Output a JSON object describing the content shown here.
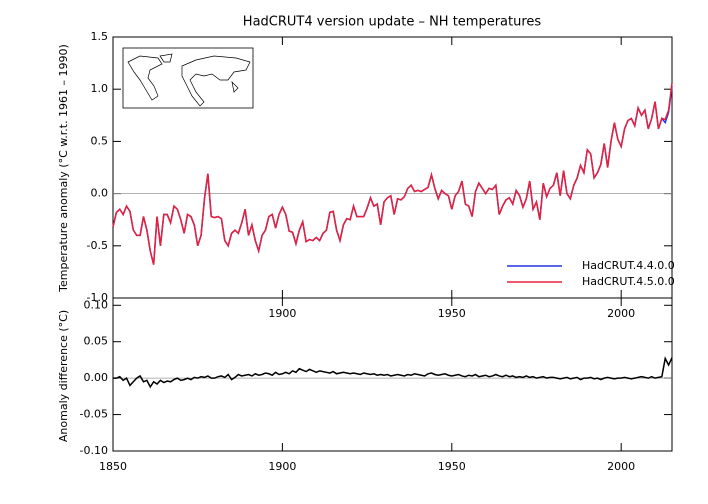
{
  "chart_data": [
    {
      "type": "line",
      "title": "HadCRUT4 version update – NH temperatures",
      "y_label": "Temperature anomaly (°C w.r.t. 1961 – 1990)",
      "x": [
        1850,
        1851,
        1852,
        1853,
        1854,
        1855,
        1856,
        1857,
        1858,
        1859,
        1860,
        1861,
        1862,
        1863,
        1864,
        1865,
        1866,
        1867,
        1868,
        1869,
        1870,
        1871,
        1872,
        1873,
        1874,
        1875,
        1876,
        1877,
        1878,
        1879,
        1880,
        1881,
        1882,
        1883,
        1884,
        1885,
        1886,
        1887,
        1888,
        1889,
        1890,
        1891,
        1892,
        1893,
        1894,
        1895,
        1896,
        1897,
        1898,
        1899,
        1900,
        1901,
        1902,
        1903,
        1904,
        1905,
        1906,
        1907,
        1908,
        1909,
        1910,
        1911,
        1912,
        1913,
        1914,
        1915,
        1916,
        1917,
        1918,
        1919,
        1920,
        1921,
        1922,
        1923,
        1924,
        1925,
        1926,
        1927,
        1928,
        1929,
        1930,
        1931,
        1932,
        1933,
        1934,
        1935,
        1936,
        1937,
        1938,
        1939,
        1940,
        1941,
        1942,
        1943,
        1944,
        1945,
        1946,
        1947,
        1948,
        1949,
        1950,
        1951,
        1952,
        1953,
        1954,
        1955,
        1956,
        1957,
        1958,
        1959,
        1960,
        1961,
        1962,
        1963,
        1964,
        1965,
        1966,
        1967,
        1968,
        1969,
        1970,
        1971,
        1972,
        1973,
        1974,
        1975,
        1976,
        1977,
        1978,
        1979,
        1980,
        1981,
        1982,
        1983,
        1984,
        1985,
        1986,
        1987,
        1988,
        1989,
        1990,
        1991,
        1992,
        1993,
        1994,
        1995,
        1996,
        1997,
        1998,
        1999,
        2000,
        2001,
        2002,
        2003,
        2004,
        2005,
        2006,
        2007,
        2008,
        2009,
        2010,
        2011,
        2012,
        2013,
        2014,
        2015
      ],
      "series": [
        {
          "name": "HadCRUT.4.4.0.0",
          "color": "#2233dd",
          "values": [
            -0.32,
            -0.18,
            -0.15,
            -0.2,
            -0.12,
            -0.17,
            -0.35,
            -0.4,
            -0.4,
            -0.22,
            -0.35,
            -0.55,
            -0.68,
            -0.22,
            -0.5,
            -0.2,
            -0.2,
            -0.28,
            -0.12,
            -0.15,
            -0.25,
            -0.38,
            -0.2,
            -0.22,
            -0.3,
            -0.5,
            -0.4,
            -0.05,
            0.19,
            -0.22,
            -0.23,
            -0.22,
            -0.24,
            -0.45,
            -0.5,
            -0.38,
            -0.35,
            -0.38,
            -0.28,
            -0.15,
            -0.4,
            -0.3,
            -0.45,
            -0.55,
            -0.4,
            -0.35,
            -0.22,
            -0.2,
            -0.33,
            -0.2,
            -0.13,
            -0.2,
            -0.36,
            -0.37,
            -0.48,
            -0.35,
            -0.27,
            -0.46,
            -0.44,
            -0.45,
            -0.42,
            -0.45,
            -0.38,
            -0.35,
            -0.18,
            -0.17,
            -0.35,
            -0.45,
            -0.3,
            -0.24,
            -0.25,
            -0.12,
            -0.22,
            -0.22,
            -0.22,
            -0.14,
            -0.04,
            -0.12,
            -0.1,
            -0.3,
            -0.08,
            -0.04,
            -0.02,
            -0.2,
            -0.05,
            -0.06,
            -0.03,
            0.05,
            0.08,
            0.02,
            0.03,
            0.02,
            0.04,
            0.06,
            0.18,
            0.05,
            -0.05,
            0.03,
            0.0,
            -0.02,
            -0.15,
            -0.02,
            0.02,
            0.12,
            -0.1,
            -0.12,
            -0.22,
            0.02,
            0.1,
            0.05,
            0.0,
            0.05,
            0.04,
            0.08,
            -0.2,
            -0.12,
            -0.06,
            -0.04,
            -0.1,
            0.03,
            -0.02,
            -0.13,
            -0.05,
            0.12,
            -0.15,
            -0.08,
            -0.25,
            0.1,
            -0.03,
            0.05,
            0.08,
            0.2,
            -0.02,
            0.22,
            0.0,
            -0.05,
            0.08,
            0.15,
            0.27,
            0.2,
            0.42,
            0.38,
            0.15,
            0.2,
            0.28,
            0.48,
            0.25,
            0.5,
            0.68,
            0.52,
            0.45,
            0.62,
            0.7,
            0.72,
            0.65,
            0.82,
            0.75,
            0.8,
            0.62,
            0.72,
            0.88,
            0.62,
            0.72,
            0.68,
            0.78,
            1.03
          ]
        },
        {
          "name": "HadCRUT.4.5.0.0",
          "color": "#e8203a",
          "values": [
            -0.32,
            -0.18,
            -0.15,
            -0.2,
            -0.12,
            -0.17,
            -0.35,
            -0.4,
            -0.4,
            -0.22,
            -0.35,
            -0.55,
            -0.68,
            -0.22,
            -0.5,
            -0.2,
            -0.2,
            -0.28,
            -0.12,
            -0.15,
            -0.25,
            -0.38,
            -0.2,
            -0.22,
            -0.3,
            -0.5,
            -0.4,
            -0.05,
            0.19,
            -0.22,
            -0.23,
            -0.22,
            -0.24,
            -0.45,
            -0.5,
            -0.38,
            -0.35,
            -0.38,
            -0.28,
            -0.15,
            -0.4,
            -0.3,
            -0.45,
            -0.55,
            -0.4,
            -0.35,
            -0.22,
            -0.2,
            -0.33,
            -0.2,
            -0.13,
            -0.2,
            -0.36,
            -0.37,
            -0.48,
            -0.35,
            -0.27,
            -0.46,
            -0.44,
            -0.45,
            -0.42,
            -0.45,
            -0.38,
            -0.35,
            -0.18,
            -0.17,
            -0.35,
            -0.45,
            -0.3,
            -0.24,
            -0.25,
            -0.12,
            -0.22,
            -0.22,
            -0.22,
            -0.14,
            -0.04,
            -0.12,
            -0.1,
            -0.3,
            -0.08,
            -0.04,
            -0.02,
            -0.2,
            -0.05,
            -0.06,
            -0.03,
            0.05,
            0.08,
            0.02,
            0.03,
            0.02,
            0.04,
            0.06,
            0.18,
            0.05,
            -0.05,
            0.03,
            0.0,
            -0.02,
            -0.15,
            -0.02,
            0.02,
            0.12,
            -0.1,
            -0.12,
            -0.22,
            0.02,
            0.1,
            0.05,
            0.0,
            0.05,
            0.04,
            0.08,
            -0.2,
            -0.12,
            -0.06,
            -0.04,
            -0.1,
            0.03,
            -0.02,
            -0.13,
            -0.05,
            0.12,
            -0.15,
            -0.08,
            -0.25,
            0.1,
            -0.03,
            0.05,
            0.08,
            0.2,
            -0.02,
            0.22,
            0.0,
            -0.05,
            0.08,
            0.15,
            0.27,
            0.2,
            0.42,
            0.38,
            0.15,
            0.2,
            0.28,
            0.48,
            0.25,
            0.5,
            0.68,
            0.52,
            0.45,
            0.62,
            0.7,
            0.72,
            0.65,
            0.82,
            0.75,
            0.8,
            0.62,
            0.72,
            0.88,
            0.62,
            0.72,
            0.71,
            0.8,
            1.06
          ]
        }
      ],
      "xlim": [
        1850,
        2015
      ],
      "xticks": [
        1900,
        1950,
        2000
      ],
      "ylim": [
        -1.0,
        1.5
      ],
      "yticks": [
        {
          "value": -1.0,
          "label": "-1.0"
        },
        {
          "value": -0.5,
          "label": "-0.5"
        },
        {
          "value": 0,
          "label": "0.0"
        },
        {
          "value": 0.5,
          "label": "0.5"
        },
        {
          "value": 1.0,
          "label": "1.0"
        },
        {
          "value": 1.5,
          "label": "1.5"
        }
      ],
      "legend": "lower right"
    },
    {
      "type": "line",
      "y_label": "Anomaly difference (°C)",
      "x": [
        1850,
        1851,
        1852,
        1853,
        1854,
        1855,
        1856,
        1857,
        1858,
        1859,
        1860,
        1861,
        1862,
        1863,
        1864,
        1865,
        1866,
        1867,
        1868,
        1869,
        1870,
        1871,
        1872,
        1873,
        1874,
        1875,
        1876,
        1877,
        1878,
        1879,
        1880,
        1881,
        1882,
        1883,
        1884,
        1885,
        1886,
        1887,
        1888,
        1889,
        1890,
        1891,
        1892,
        1893,
        1894,
        1895,
        1896,
        1897,
        1898,
        1899,
        1900,
        1901,
        1902,
        1903,
        1904,
        1905,
        1906,
        1907,
        1908,
        1909,
        1910,
        1911,
        1912,
        1913,
        1914,
        1915,
        1916,
        1917,
        1918,
        1919,
        1920,
        1921,
        1922,
        1923,
        1924,
        1925,
        1926,
        1927,
        1928,
        1929,
        1930,
        1931,
        1932,
        1933,
        1934,
        1935,
        1936,
        1937,
        1938,
        1939,
        1940,
        1941,
        1942,
        1943,
        1944,
        1945,
        1946,
        1947,
        1948,
        1949,
        1950,
        1951,
        1952,
        1953,
        1954,
        1955,
        1956,
        1957,
        1958,
        1959,
        1960,
        1961,
        1962,
        1963,
        1964,
        1965,
        1966,
        1967,
        1968,
        1969,
        1970,
        1971,
        1972,
        1973,
        1974,
        1975,
        1976,
        1977,
        1978,
        1979,
        1980,
        1981,
        1982,
        1983,
        1984,
        1985,
        1986,
        1987,
        1988,
        1989,
        1990,
        1991,
        1992,
        1993,
        1994,
        1995,
        1996,
        1997,
        1998,
        1999,
        2000,
        2001,
        2002,
        2003,
        2004,
        2005,
        2006,
        2007,
        2008,
        2009,
        2010,
        2011,
        2012,
        2013,
        2014,
        2015
      ],
      "series": [
        {
          "color": "#000000",
          "values": [
            0,
            0,
            0.002,
            -0.003,
            0,
            -0.01,
            -0.005,
            0,
            0.003,
            -0.005,
            -0.003,
            -0.012,
            -0.005,
            -0.008,
            -0.003,
            -0.006,
            -0.004,
            -0.005,
            -0.002,
            0,
            -0.003,
            -0.002,
            0,
            -0.002,
            0.001,
            0,
            0.002,
            0.001,
            0.003,
            0,
            0,
            0.002,
            0.003,
            0.001,
            0.005,
            -0.002,
            0.001,
            0.005,
            0.003,
            0.004,
            0.005,
            0.003,
            0.006,
            0.004,
            0.005,
            0.007,
            0.006,
            0.004,
            0.008,
            0.005,
            0.006,
            0.008,
            0.006,
            0.01,
            0.008,
            0.013,
            0.011,
            0.009,
            0.012,
            0.01,
            0.008,
            0.01,
            0.009,
            0.008,
            0.007,
            0.009,
            0.006,
            0.007,
            0.008,
            0.007,
            0.006,
            0.007,
            0.006,
            0.005,
            0.007,
            0.006,
            0.005,
            0.006,
            0.004,
            0.005,
            0.004,
            0.005,
            0.003,
            0.004,
            0.005,
            0.004,
            0.003,
            0.005,
            0.004,
            0.006,
            0.005,
            0.004,
            0.003,
            0.006,
            0.007,
            0.005,
            0.004,
            0.005,
            0.006,
            0.004,
            0.003,
            0.004,
            0.005,
            0.003,
            0.002,
            0.004,
            0.003,
            0.005,
            0.002,
            0.003,
            0.004,
            0.002,
            0.003,
            0.005,
            0.003,
            0.002,
            0.004,
            0.002,
            0.003,
            0.001,
            0.002,
            0.001,
            0.003,
            0.001,
            0.002,
            0,
            0.001,
            0.002,
            0,
            0.001,
            0.001,
            0,
            -0.001,
            0,
            0.001,
            -0.001,
            0,
            0.001,
            -0.002,
            0,
            0,
            0.001,
            -0.001,
            0,
            -0.002,
            0,
            0.001,
            0,
            -0.001,
            0,
            0,
            0.001,
            0,
            -0.001,
            0,
            0.001,
            0.002,
            0.001,
            0,
            0.002,
            0,
            0.001,
            0.002,
            0.027,
            0.018,
            0.028
          ]
        }
      ],
      "xlim": [
        1850,
        2015
      ],
      "xticks": [
        1850,
        1900,
        1950,
        2000
      ],
      "ylim": [
        -0.1,
        0.11
      ],
      "yticks": [
        {
          "value": -0.1,
          "label": "-0.10"
        },
        {
          "value": -0.05,
          "label": "-0.05"
        },
        {
          "value": 0,
          "label": "0.00"
        },
        {
          "value": 0.05,
          "label": "0.05"
        },
        {
          "value": 0.1,
          "label": "0.10"
        }
      ]
    }
  ]
}
